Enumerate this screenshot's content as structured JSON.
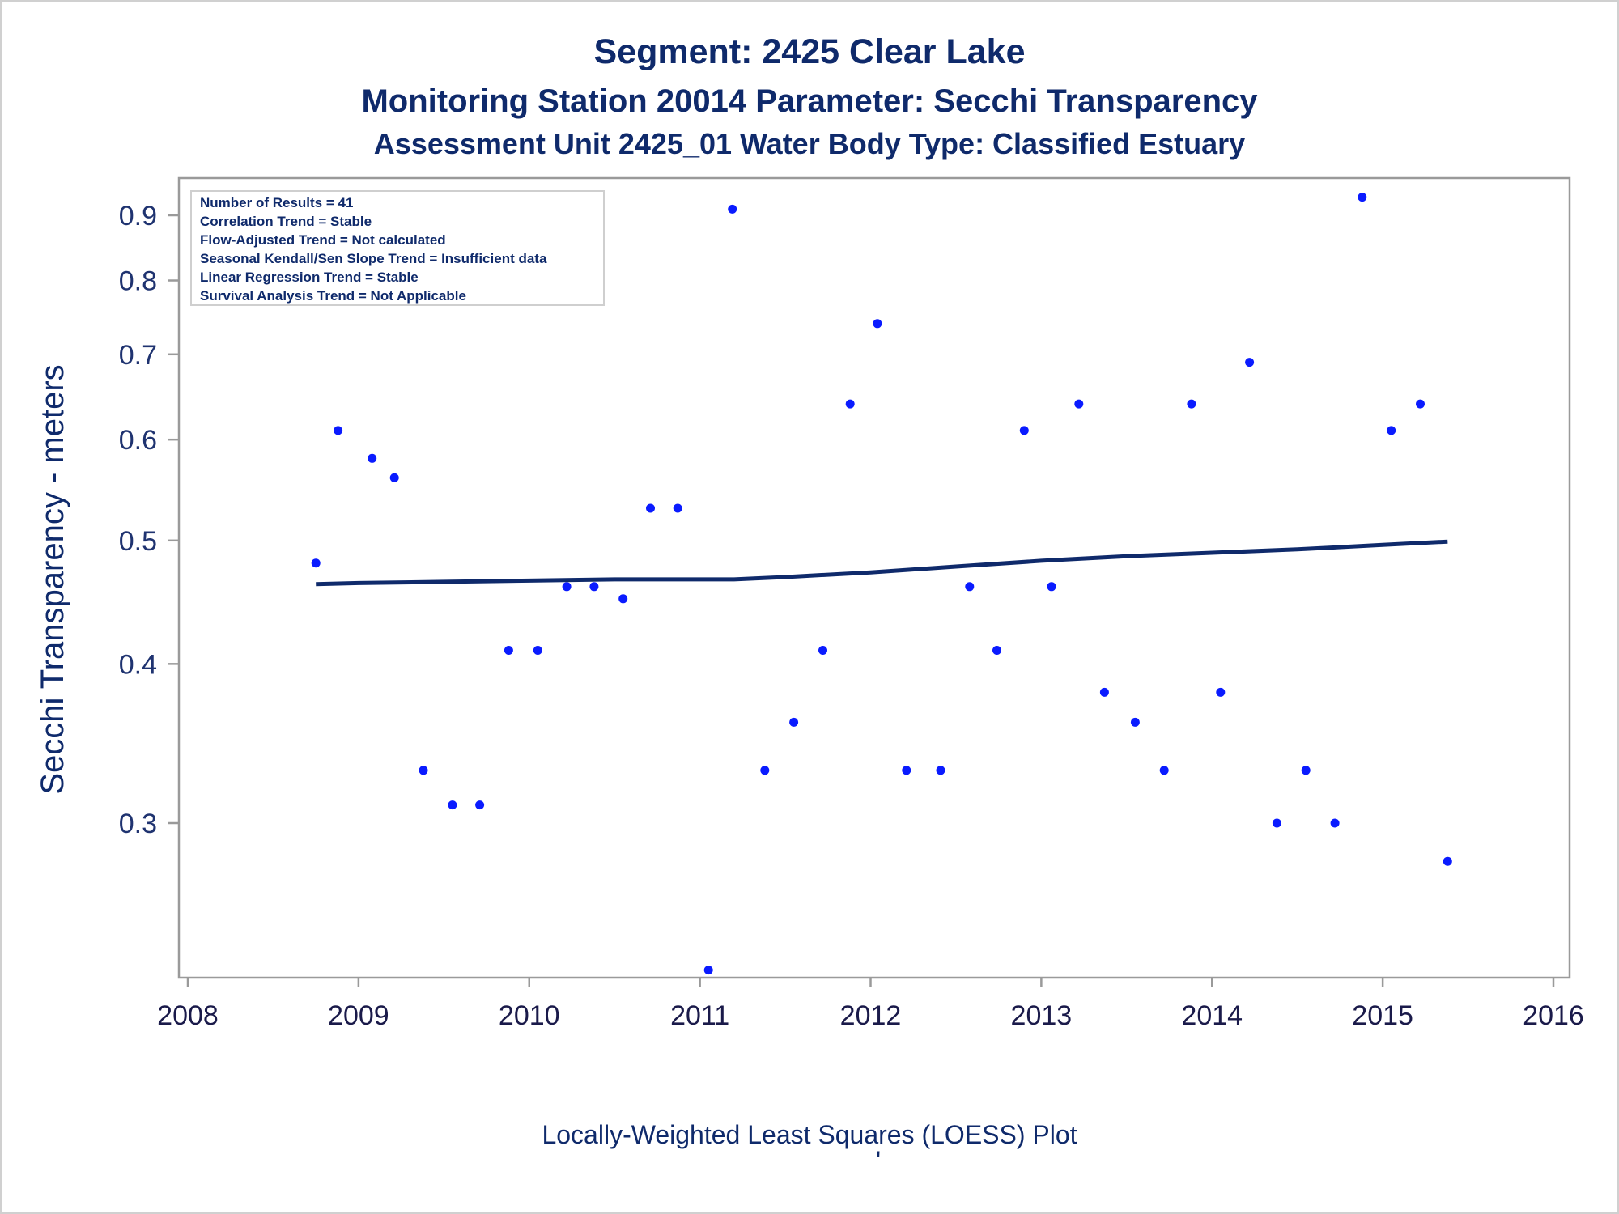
{
  "chart_data": {
    "type": "scatter",
    "title": "Segment: 2425  Clear Lake",
    "subtitle": "Monitoring Station 20014 Parameter: Secchi Transparency",
    "subtitle2": "Assessment Unit 2425_01   Water Body Type: Classified Estuary",
    "xlabel": "",
    "ylabel": "Secchi Transparency - meters",
    "footnote": "Locally-Weighted Least Squares (LOESS) Plot",
    "footnote_mark": "'",
    "xlim": [
      2008,
      2016
    ],
    "ylim": [
      0.23,
      0.95
    ],
    "y_scale": "log",
    "grid": false,
    "legend_position": "top-left",
    "x_ticks": [
      "2008",
      "2009",
      "2010",
      "2011",
      "2012",
      "2013",
      "2014",
      "2015",
      "2016"
    ],
    "y_ticks": [
      "0.3",
      "0.4",
      "0.5",
      "0.6",
      "0.7",
      "0.8",
      "0.9"
    ],
    "info_lines": [
      "Number of Results = 41",
      "Correlation Trend = Stable",
      "Flow-Adjusted Trend = Not calculated",
      "Seasonal Kendall/Sen Slope Trend = Insufficient data",
      "Linear Regression Trend = Stable",
      "Survival Analysis Trend = Not Applicable"
    ],
    "series": [
      {
        "kind": "points",
        "color": "#0a1bff",
        "points": [
          {
            "x": 2008.75,
            "y": 0.48
          },
          {
            "x": 2008.88,
            "y": 0.61
          },
          {
            "x": 2009.08,
            "y": 0.58
          },
          {
            "x": 2009.21,
            "y": 0.56
          },
          {
            "x": 2009.38,
            "y": 0.33
          },
          {
            "x": 2009.55,
            "y": 0.31
          },
          {
            "x": 2009.71,
            "y": 0.31
          },
          {
            "x": 2009.88,
            "y": 0.41
          },
          {
            "x": 2010.05,
            "y": 0.41
          },
          {
            "x": 2010.22,
            "y": 0.46
          },
          {
            "x": 2010.38,
            "y": 0.46
          },
          {
            "x": 2010.55,
            "y": 0.45
          },
          {
            "x": 2010.71,
            "y": 0.53
          },
          {
            "x": 2010.87,
            "y": 0.53
          },
          {
            "x": 2011.05,
            "y": 0.23
          },
          {
            "x": 2011.19,
            "y": 0.91
          },
          {
            "x": 2011.38,
            "y": 0.33
          },
          {
            "x": 2011.55,
            "y": 0.36
          },
          {
            "x": 2011.72,
            "y": 0.41
          },
          {
            "x": 2011.88,
            "y": 0.64
          },
          {
            "x": 2012.04,
            "y": 0.74
          },
          {
            "x": 2012.21,
            "y": 0.33
          },
          {
            "x": 2012.41,
            "y": 0.33
          },
          {
            "x": 2012.58,
            "y": 0.46
          },
          {
            "x": 2012.74,
            "y": 0.41
          },
          {
            "x": 2012.9,
            "y": 0.61
          },
          {
            "x": 2013.06,
            "y": 0.46
          },
          {
            "x": 2013.22,
            "y": 0.64
          },
          {
            "x": 2013.37,
            "y": 0.38
          },
          {
            "x": 2013.55,
            "y": 0.36
          },
          {
            "x": 2013.72,
            "y": 0.33
          },
          {
            "x": 2013.88,
            "y": 0.64
          },
          {
            "x": 2014.05,
            "y": 0.38
          },
          {
            "x": 2014.22,
            "y": 0.69
          },
          {
            "x": 2014.38,
            "y": 0.3
          },
          {
            "x": 2014.55,
            "y": 0.33
          },
          {
            "x": 2014.72,
            "y": 0.3
          },
          {
            "x": 2014.88,
            "y": 0.93
          },
          {
            "x": 2015.05,
            "y": 0.61
          },
          {
            "x": 2015.22,
            "y": 0.64
          },
          {
            "x": 2015.38,
            "y": 0.28
          }
        ]
      },
      {
        "kind": "loess",
        "color": "#0f2a6b",
        "points": [
          {
            "x": 2008.75,
            "y": 0.462
          },
          {
            "x": 2009.0,
            "y": 0.463
          },
          {
            "x": 2009.5,
            "y": 0.464
          },
          {
            "x": 2010.0,
            "y": 0.465
          },
          {
            "x": 2010.5,
            "y": 0.466
          },
          {
            "x": 2011.0,
            "y": 0.466
          },
          {
            "x": 2011.2,
            "y": 0.466
          },
          {
            "x": 2011.5,
            "y": 0.468
          },
          {
            "x": 2012.0,
            "y": 0.472
          },
          {
            "x": 2012.5,
            "y": 0.477
          },
          {
            "x": 2013.0,
            "y": 0.482
          },
          {
            "x": 2013.5,
            "y": 0.486
          },
          {
            "x": 2014.0,
            "y": 0.489
          },
          {
            "x": 2014.5,
            "y": 0.492
          },
          {
            "x": 2015.0,
            "y": 0.496
          },
          {
            "x": 2015.38,
            "y": 0.499
          }
        ]
      }
    ]
  }
}
